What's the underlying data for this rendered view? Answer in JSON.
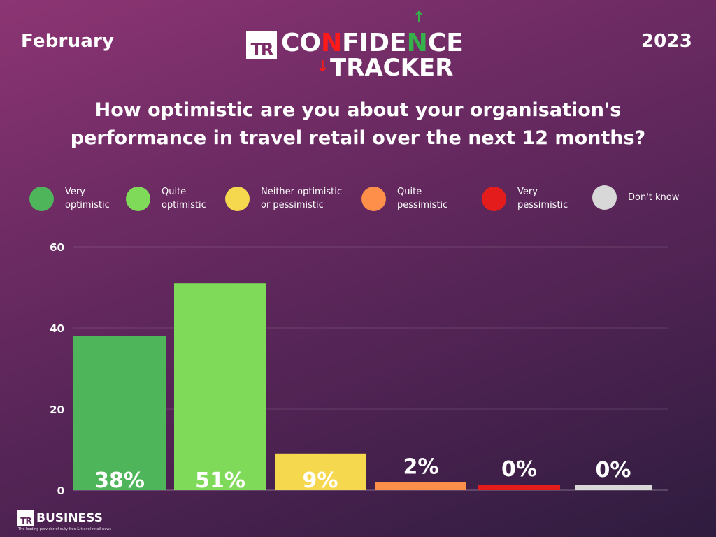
{
  "header": {
    "month": "February",
    "year": "2023",
    "logo": {
      "prefix": "TR",
      "line1_parts": [
        "CO",
        "N",
        "FIDE",
        "N",
        "CE"
      ],
      "line2": "TRACKER",
      "arrow_up": "↑",
      "arrow_down": "↓"
    }
  },
  "colors": {
    "very_optimistic": "#4fb55b",
    "quite_optimistic": "#7fda5a",
    "neither": "#f6d84f",
    "quite_pessimistic": "#fd8f4a",
    "very_pessimistic": "#e41c1c",
    "dont_know": "#d8d8d8",
    "logo_red": "#ff1a1a",
    "logo_green": "#35b04a"
  },
  "footer": {
    "brand_prefix": "TR",
    "brand": "BUSINESS",
    "tagline": "The leading provider of duty free & travel retail news"
  },
  "chart_data": {
    "type": "bar",
    "title": "How optimistic are you about your organisation's performance in travel retail over the next 12 months?",
    "xlabel": "",
    "ylabel": "",
    "ylim": [
      0,
      60
    ],
    "yticks": [
      0,
      20,
      40,
      60
    ],
    "grid": true,
    "legend_position": "top",
    "categories": [
      "Very optimistic",
      "Quite optimistic",
      "Neither optimistic or pessimistic",
      "Quite pessimistic",
      "Very pessimistic",
      "Don't know"
    ],
    "legend_labels": [
      "Very\noptimistic",
      "Quite\noptimistic",
      "Neither optimistic\nor pessimistic",
      "Quite\npessimistic",
      "Very\npessimistic",
      "Don't know"
    ],
    "values": [
      38,
      51,
      9,
      2,
      0,
      0
    ],
    "data_labels": [
      "38%",
      "51%",
      "9%",
      "2%",
      "0%",
      "0%"
    ],
    "bar_colors": [
      "#4fb55b",
      "#7fda5a",
      "#f6d84f",
      "#fd8f4a",
      "#e41c1c",
      "#d8d8d8"
    ]
  }
}
